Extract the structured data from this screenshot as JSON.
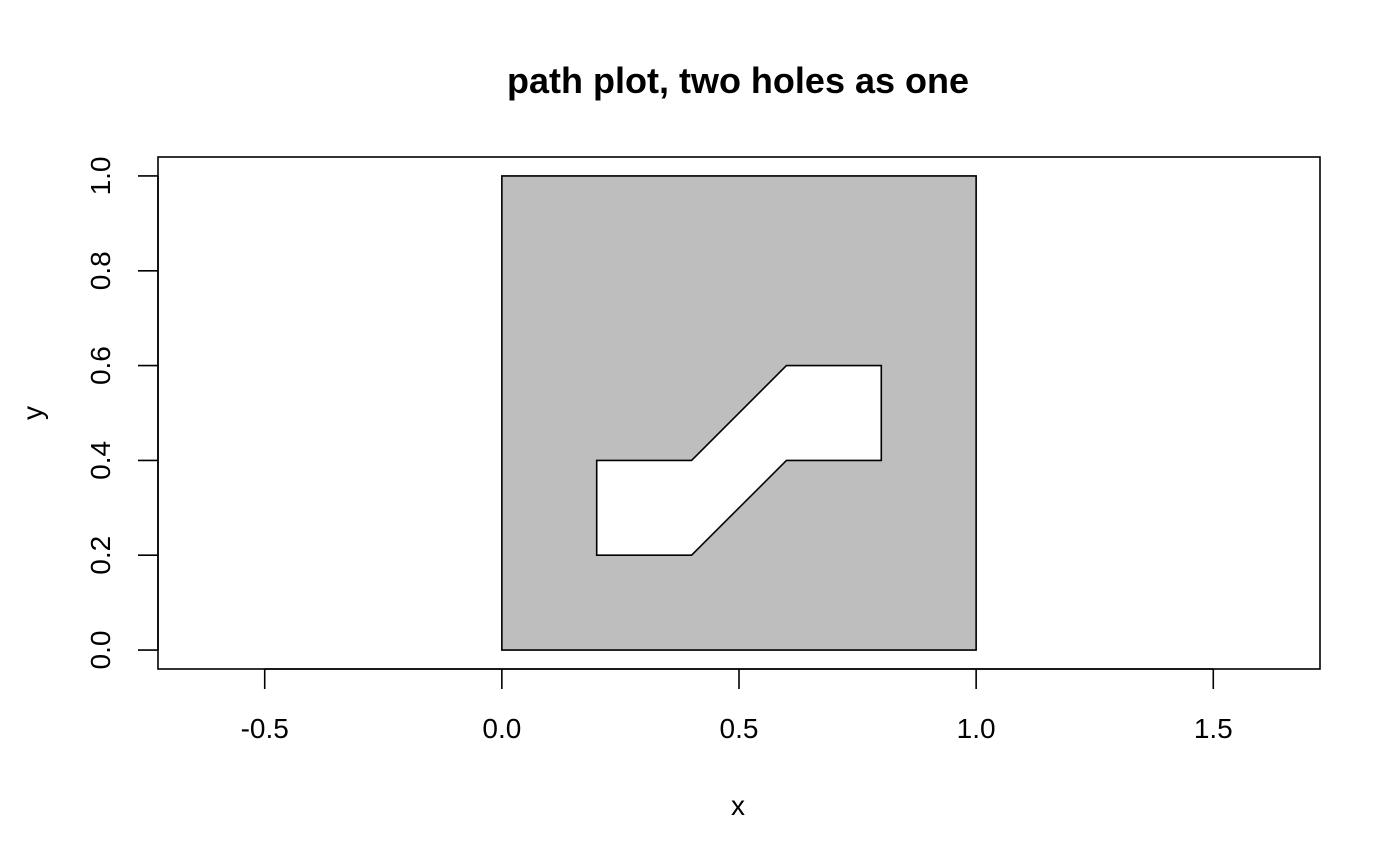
{
  "chart_data": {
    "type": "path",
    "title": "path plot, two holes as one",
    "xlabel": "x",
    "ylabel": "y",
    "xlim": [
      -0.725,
      1.725
    ],
    "ylim": [
      -0.04,
      1.04
    ],
    "xticks": [
      -0.5,
      0.0,
      0.5,
      1.0,
      1.5
    ],
    "xtick_labels": [
      "-0.5",
      "0.0",
      "0.5",
      "1.0",
      "1.5"
    ],
    "yticks": [
      0.0,
      0.2,
      0.4,
      0.6,
      0.8,
      1.0
    ],
    "ytick_labels": [
      "0.0",
      "0.2",
      "0.4",
      "0.6",
      "0.8",
      "1.0"
    ],
    "grid": false,
    "fill_color": "#bebebe",
    "stroke_color": "#000000",
    "outer_path": [
      [
        0,
        0
      ],
      [
        1,
        0
      ],
      [
        1,
        1
      ],
      [
        0,
        1
      ]
    ],
    "hole_path": [
      [
        0.2,
        0.2
      ],
      [
        0.4,
        0.2
      ],
      [
        0.6,
        0.4
      ],
      [
        0.8,
        0.4
      ],
      [
        0.8,
        0.6
      ],
      [
        0.6,
        0.6
      ],
      [
        0.4,
        0.4
      ],
      [
        0.2,
        0.4
      ]
    ]
  }
}
